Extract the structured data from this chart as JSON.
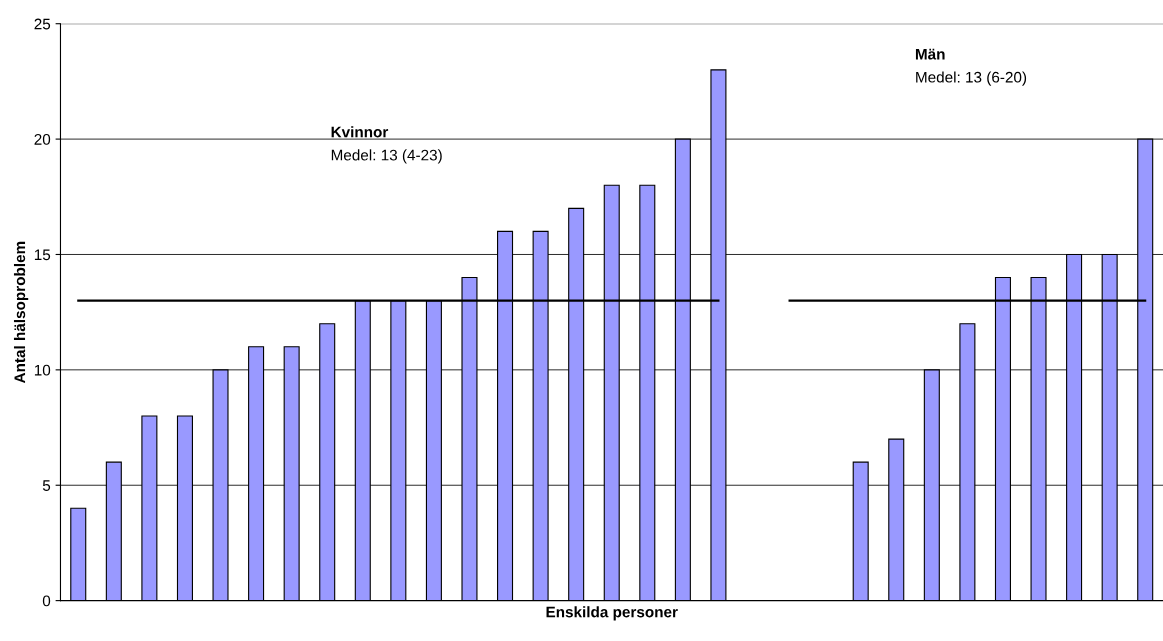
{
  "chart_data": {
    "type": "bar",
    "xlabel": "Enskilda personer",
    "ylabel": "Antal hälsoproblem",
    "categories": [
      null,
      null,
      null,
      null,
      null,
      null,
      null,
      null,
      null,
      null,
      null,
      null,
      null,
      null,
      null,
      null,
      null,
      null,
      null,
      null,
      null,
      null,
      null,
      null,
      null,
      null,
      null,
      null,
      null,
      null,
      null
    ],
    "series": [
      {
        "color": "#9999ff",
        "values": [
          4,
          6,
          8,
          8,
          10,
          11,
          11,
          12,
          13,
          13,
          13,
          14,
          16,
          16,
          17,
          18,
          18,
          20,
          23,
          null,
          null,
          null,
          6,
          7,
          10,
          12,
          14,
          14,
          15,
          15,
          20
        ]
      },
      {
        "type": "line",
        "color": "#000000",
        "values": [
          13,
          13,
          13,
          13,
          13,
          13,
          13,
          13,
          13,
          13,
          13,
          13,
          13,
          13,
          13,
          13,
          13,
          13,
          13,
          null,
          null,
          null,
          null,
          null,
          null,
          null,
          null,
          null,
          null,
          null,
          null
        ]
      },
      {
        "type": "line",
        "color": "#000000",
        "values": [
          null,
          null,
          null,
          null,
          null,
          null,
          null,
          null,
          null,
          null,
          null,
          null,
          null,
          null,
          null,
          null,
          null,
          null,
          null,
          null,
          13,
          13,
          13,
          13,
          13,
          13,
          13,
          13,
          13,
          13,
          13
        ]
      }
    ],
    "ylim": [
      0,
      25
    ],
    "yticks": [
      0,
      5,
      10,
      15,
      20,
      25
    ],
    "grid": "y",
    "tick_labels": "y",
    "annotations": [
      "Kvinnor",
      "Medel: 13 (4-23)",
      "Män",
      "Medel: 13 (6-20)"
    ]
  }
}
